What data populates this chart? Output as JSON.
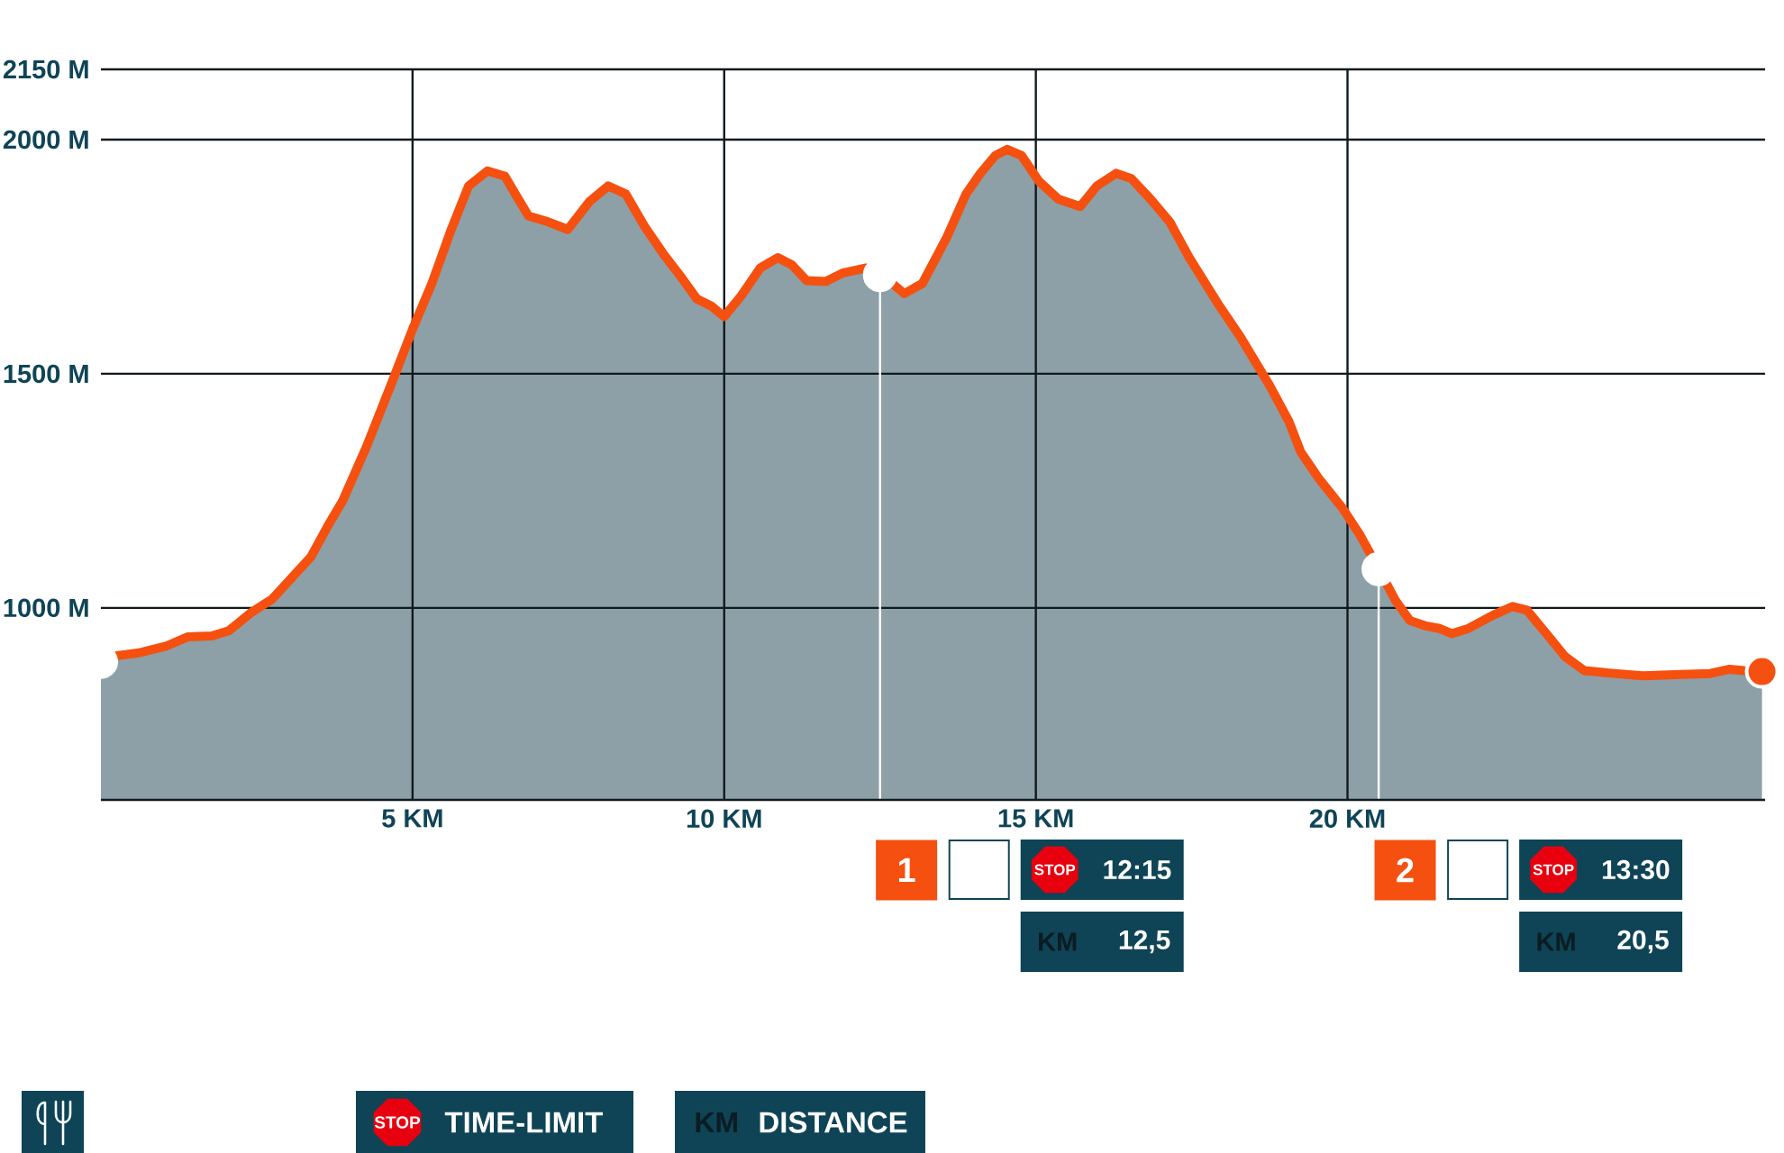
{
  "chart_data": {
    "type": "area",
    "xlim": [
      0,
      26.7
    ],
    "ylim": [
      590,
      2150
    ],
    "xticks": [
      {
        "value": 5,
        "label": "5 KM"
      },
      {
        "value": 10,
        "label": "10 KM"
      },
      {
        "value": 15,
        "label": "15 KM"
      },
      {
        "value": 20,
        "label": "20 KM"
      }
    ],
    "yticks": [
      {
        "value": 1000,
        "label": "1000 M"
      },
      {
        "value": 1500,
        "label": "1500 M"
      },
      {
        "value": 2000,
        "label": "2000 M"
      },
      {
        "value": 2150,
        "label": "2150 M"
      }
    ],
    "grid": true,
    "series": [
      {
        "color": "#f5500f",
        "x": [
          0,
          0.26,
          0.61,
          1.04,
          1.39,
          1.78,
          2.05,
          2.4,
          2.75,
          3.37,
          3.64,
          3.88,
          4.26,
          4.65,
          5.0,
          5.31,
          5.62,
          5.9,
          6.2,
          6.48,
          6.67,
          6.86,
          7.14,
          7.49,
          7.84,
          8.14,
          8.42,
          8.73,
          9.04,
          9.29,
          9.56,
          9.8,
          10.0,
          10.27,
          10.58,
          10.86,
          11.09,
          11.32,
          11.63,
          11.9,
          12.28,
          12.56,
          12.89,
          13.18,
          13.57,
          13.88,
          14.11,
          14.35,
          14.54,
          14.77,
          15.05,
          15.36,
          15.71,
          15.98,
          16.29,
          16.53,
          16.84,
          17.15,
          17.46,
          17.92,
          18.28,
          18.75,
          19.06,
          19.25,
          19.53,
          19.92,
          20.19,
          20.46,
          20.77,
          21.0,
          21.24,
          21.48,
          21.67,
          21.94,
          22.33,
          22.65,
          22.88,
          23.19,
          23.49,
          23.8,
          24.19,
          24.74,
          25.35,
          25.82,
          26.13,
          26.36,
          26.65
        ],
        "values": [
          885,
          898,
          904,
          918,
          938,
          940,
          951,
          989,
          1019,
          1109,
          1175,
          1229,
          1344,
          1475,
          1595,
          1693,
          1808,
          1901,
          1933,
          1922,
          1879,
          1837,
          1826,
          1808,
          1868,
          1901,
          1884,
          1813,
          1753,
          1710,
          1660,
          1644,
          1622,
          1666,
          1726,
          1748,
          1732,
          1699,
          1697,
          1715,
          1726,
          1708,
          1671,
          1693,
          1791,
          1884,
          1928,
          1966,
          1979,
          1966,
          1911,
          1873,
          1857,
          1901,
          1928,
          1917,
          1873,
          1824,
          1748,
          1650,
          1579,
          1475,
          1398,
          1333,
          1278,
          1213,
          1158,
          1093,
          1016,
          973,
          962,
          956,
          945,
          956,
          984,
          1003,
          995,
          945,
          896,
          866,
          861,
          855,
          858,
          860,
          869,
          866,
          864
        ]
      },
      {
        "type": "scatter",
        "marker": "circle",
        "x": [
          0,
          12.5,
          20.5,
          26.65
        ],
        "values": [
          885,
          1711,
          1083,
          864
        ],
        "colors": [
          "#ffffff",
          "#ffffff",
          "#ffffff",
          "#f5500f"
        ]
      }
    ],
    "ref_lines": [
      {
        "axis": "x",
        "value": 12.5,
        "color": "#ffffff"
      },
      {
        "axis": "x",
        "value": 20.5,
        "color": "#ffffff"
      }
    ],
    "annotations": [
      "1",
      "STOP",
      "12:15",
      "KM",
      "12,5",
      "2",
      "STOP",
      "13:30",
      "KM",
      "20,5",
      "STOP",
      "TIME-LIMIT",
      "KM",
      "DISTANCE"
    ]
  }
}
